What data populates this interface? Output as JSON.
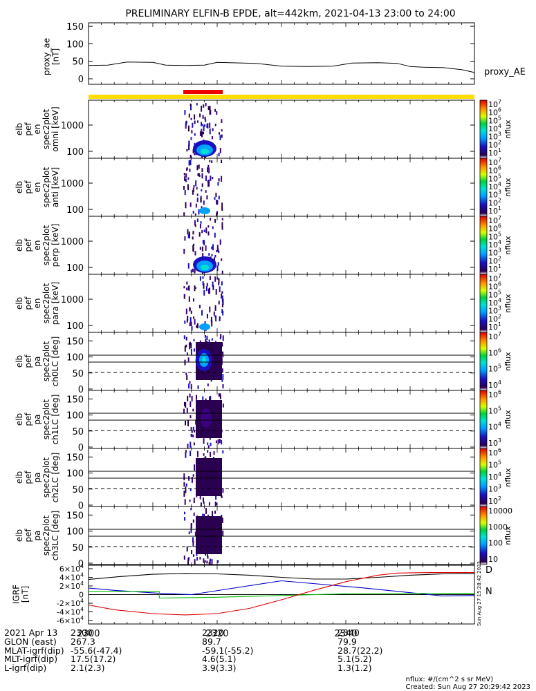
{
  "title": "PRELIMINARY ELFIN-B EPDE, alt=442km, 2021-04-13 23:00 to 24:00",
  "chart_data": [
    {
      "type": "line",
      "ylabel": "proxy_ae [nT]",
      "legend": "proxy_AE",
      "ylim": [
        0,
        160
      ],
      "yticks": [
        "0",
        "50",
        "100",
        "150"
      ],
      "x_minutes": [
        0,
        3,
        6,
        10,
        12,
        15,
        18,
        20,
        22,
        24,
        26,
        30,
        34,
        38,
        41,
        45,
        48,
        50,
        52,
        55,
        58,
        60
      ],
      "y": [
        38,
        39,
        48,
        47,
        39,
        38,
        39,
        47,
        46,
        45,
        44,
        36,
        35,
        36,
        45,
        46,
        44,
        35,
        33,
        32,
        26,
        18
      ]
    },
    {
      "type": "heatmap",
      "ylabel": "elb pef en spec2plot omni [keV]",
      "yticks": [
        "100",
        "1000"
      ],
      "colorbar": {
        "label": "nflux",
        "ticks": [
          "10^1",
          "10^2",
          "10^3",
          "10^4",
          "10^5",
          "10^6",
          "10^7"
        ]
      }
    },
    {
      "type": "heatmap",
      "ylabel": "elb pef en spec2plot anti [keV]",
      "yticks": [
        "100",
        "1000"
      ],
      "colorbar": {
        "label": "nflux",
        "ticks": [
          "10^1",
          "10^2",
          "10^3",
          "10^4",
          "10^5",
          "10^6",
          "10^7"
        ]
      }
    },
    {
      "type": "heatmap",
      "ylabel": "elb pef en spec2plot perp [keV]",
      "yticks": [
        "100",
        "1000"
      ],
      "colorbar": {
        "label": "nflux",
        "ticks": [
          "10^1",
          "10^2",
          "10^3",
          "10^4",
          "10^5",
          "10^6",
          "10^7"
        ]
      }
    },
    {
      "type": "heatmap",
      "ylabel": "elb pef en spec2plot para [keV]",
      "yticks": [
        "100",
        "1000"
      ],
      "colorbar": {
        "label": "nflux",
        "ticks": [
          "10^1",
          "10^2",
          "10^3",
          "10^4",
          "10^5",
          "10^6",
          "10^7"
        ]
      }
    },
    {
      "type": "heatmap",
      "ylabel": "elb pef pa spec2plot ch0LC [deg]",
      "yticks": [
        "0",
        "50",
        "100",
        "150"
      ],
      "colorbar": {
        "label": "nflux",
        "ticks": [
          "10^4",
          "10^5",
          "10^6",
          "10^7"
        ]
      }
    },
    {
      "type": "heatmap",
      "ylabel": "elb pef pa spec2plot ch1LC [deg]",
      "yticks": [
        "0",
        "50",
        "100",
        "150"
      ],
      "colorbar": {
        "label": "nflux",
        "ticks": [
          "10^3",
          "10^4",
          "10^5",
          "10^6"
        ]
      }
    },
    {
      "type": "heatmap",
      "ylabel": "elb pef pa spec2plot ch2LC [deg]",
      "yticks": [
        "0",
        "50",
        "100",
        "150"
      ],
      "colorbar": {
        "label": "nflux",
        "ticks": [
          "10^2",
          "10^3",
          "10^4",
          "10^5",
          "10^6"
        ]
      }
    },
    {
      "type": "heatmap",
      "ylabel": "elb pef pa spec2plot ch3LC [deg]",
      "yticks": [
        "0",
        "50",
        "100",
        "150"
      ],
      "colorbar": {
        "label": "nflux",
        "ticks": [
          "10",
          "100",
          "1000",
          "10000"
        ]
      }
    },
    {
      "type": "line",
      "ylabel": "IGRF [nT]",
      "yticks": [
        "-6×10^4",
        "-4×10^4",
        "-2×10^4",
        "0",
        "2×10^4",
        "4×10^4",
        "6×10^4"
      ],
      "ylim": [
        -60000,
        60000
      ],
      "legend": [
        "D",
        "N"
      ],
      "series": [
        {
          "color": "#000000",
          "x_minutes": [
            0,
            5,
            10,
            15,
            20,
            25,
            30,
            35,
            40,
            45,
            50,
            55,
            60
          ],
          "values": [
            35000,
            42000,
            47000,
            49000,
            48000,
            45000,
            40000,
            36000,
            36000,
            40000,
            45000,
            48000,
            49000
          ]
        },
        {
          "color": "#0000cc",
          "x_minutes": [
            0,
            4,
            11,
            16,
            30,
            43,
            55,
            60
          ],
          "values": [
            15000,
            10000,
            3000,
            0,
            32000,
            15000,
            -3000,
            -2000
          ]
        },
        {
          "color": "#00bb00",
          "x_minutes": [
            0,
            11,
            11,
            20,
            30,
            40,
            55,
            60
          ],
          "values": [
            7000,
            7000,
            -8000,
            -6000,
            -2000,
            2000,
            3000,
            3000
          ]
        },
        {
          "color": "#dd0000",
          "x_minutes": [
            0,
            4,
            10,
            15,
            20,
            25,
            30,
            35,
            40,
            45,
            48,
            53,
            56,
            60
          ],
          "values": [
            -24000,
            -35000,
            -44000,
            -47000,
            -44000,
            -32000,
            -12000,
            10000,
            30000,
            45000,
            50000,
            51000,
            51000,
            51000
          ]
        }
      ]
    }
  ],
  "x_ticks": [
    "2300",
    "2320",
    "2340"
  ],
  "footer": {
    "rows": [
      {
        "label": "2021 Apr 13",
        "v1": "2300",
        "v2": "2320",
        "v3": "2340"
      },
      {
        "label": "GLON (east)",
        "v1": "267.3",
        "v2": "89.7",
        "v3": "79.9"
      },
      {
        "label": "MLAT-igrf(dip)",
        "v1": "-55.6(-47.4)",
        "v2": "-59.1(-55.2)",
        "v3": "28.7(22.2)"
      },
      {
        "label": "MLT-igrf(dip)",
        "v1": "17.5(17.2)",
        "v2": "4.6(5.1)",
        "v3": "5.1(5.2)"
      },
      {
        "label": "L-igrf(dip)",
        "v1": "2.1(2.3)",
        "v2": "3.9(3.3)",
        "v3": "1.3(1.2)"
      }
    ],
    "unit_note": "nflux: #/(cm^2 s sr MeV)",
    "created": "Created: Sun Aug 27 20:29:42 2023",
    "stamp": "Sun Aug 27 15:28:42 2023"
  },
  "colors": {
    "bar_yellow": "#ffdd00",
    "bar_red": "#ee0000"
  }
}
